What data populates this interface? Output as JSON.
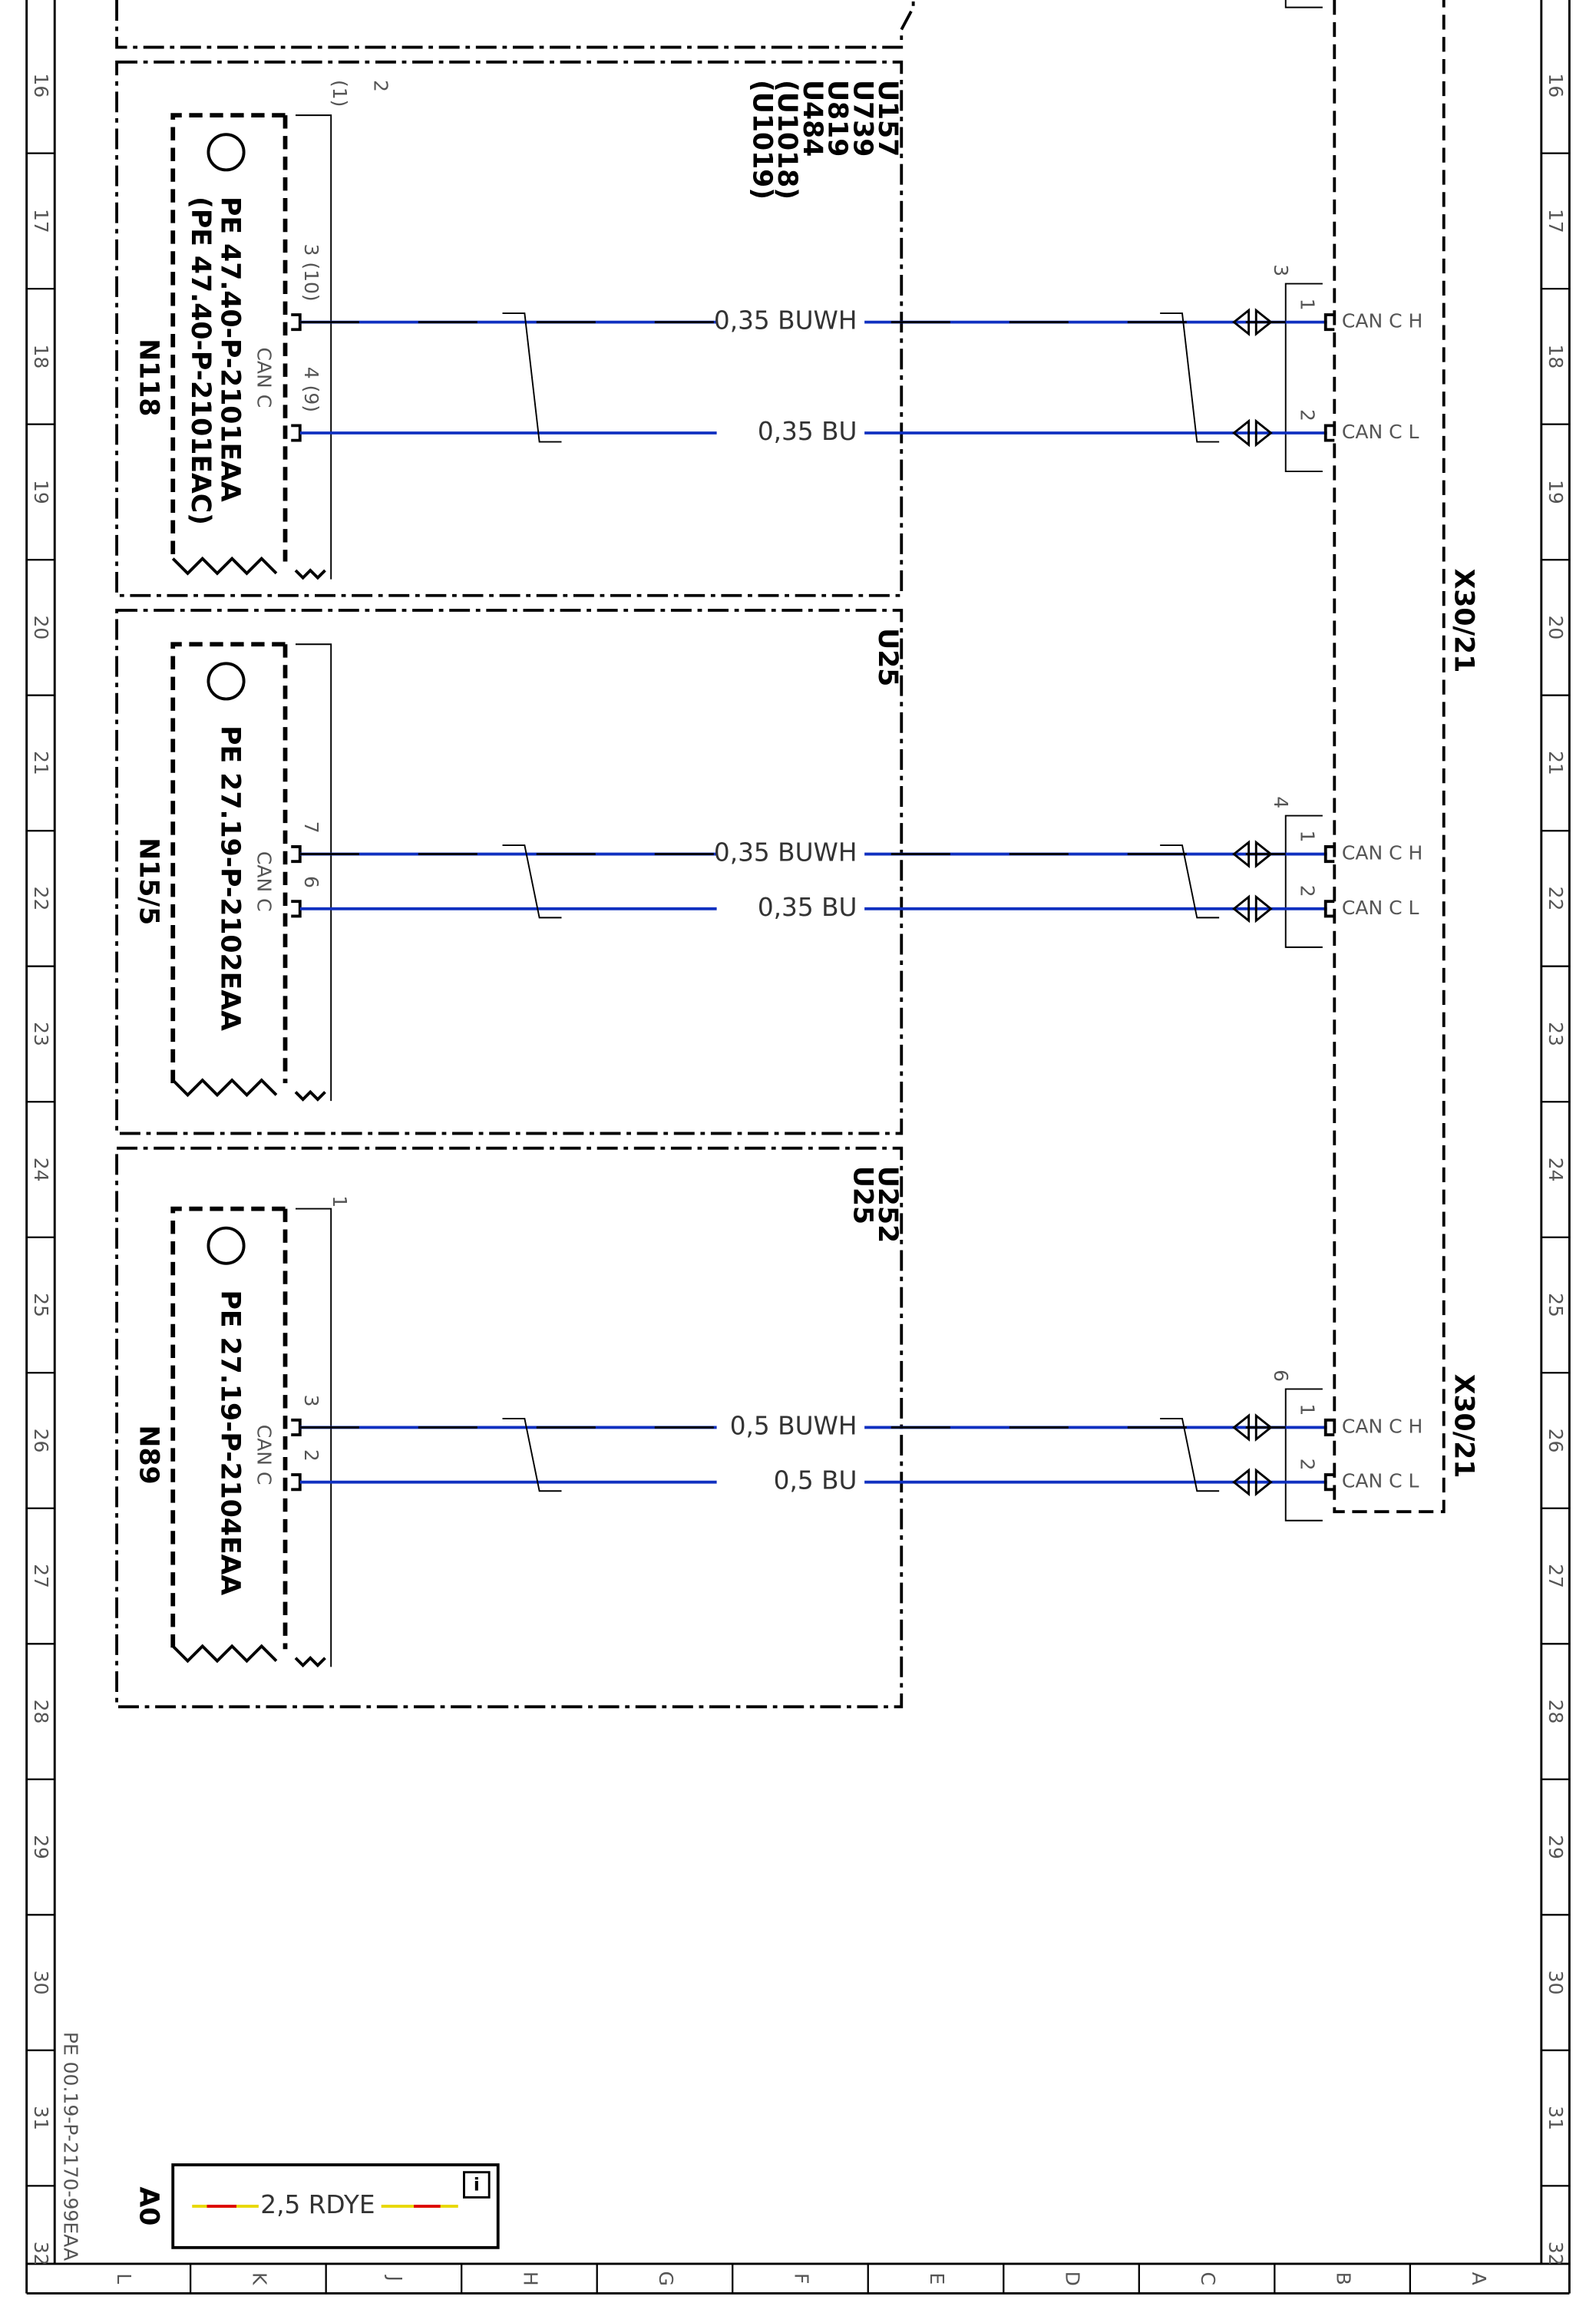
{
  "rows": [
    "16",
    "17",
    "18",
    "19",
    "20",
    "21",
    "22",
    "23",
    "24",
    "25",
    "26",
    "27",
    "28",
    "29",
    "30",
    "31",
    "32"
  ],
  "columns": [
    "L",
    "K",
    "J",
    "H",
    "G",
    "F",
    "E",
    "D",
    "C",
    "B",
    "A"
  ],
  "doc_id": "PE 00.19-P-2170-99EAA",
  "sheet": "A0",
  "legend": {
    "label": "2,5 RDYE"
  },
  "connector": {
    "label": "X30/21",
    "pin_high": "1",
    "pin_low": "2",
    "signal_high": "CAN C H",
    "signal_low": "CAN C L"
  },
  "blocks": [
    {
      "code": "N118",
      "refs": [
        "PE 47.40-P-2101EAA",
        "(PE 47.40-P-2101EAC)"
      ],
      "bus": "CAN C",
      "variants": [
        "U157",
        "U739",
        "U819",
        "U484",
        "(U1018)",
        "(U1019)"
      ],
      "top_labels": [
        "(1)",
        "2"
      ],
      "pins": [
        "3 (10)",
        "4 (9)"
      ],
      "wires": [
        "0,35 BUWH",
        "0,35 BU"
      ],
      "connector_no": "3"
    },
    {
      "code": "N15/5",
      "refs": [
        "PE 27.19-P-2102EAA"
      ],
      "bus": "CAN C",
      "variants": [
        "U25"
      ],
      "top_labels": [],
      "pins": [
        "7",
        "6"
      ],
      "wires": [
        "0,35 BUWH",
        "0,35 BU"
      ],
      "connector_no": "4"
    },
    {
      "code": "N89",
      "refs": [
        "PE 27.19-P-2104EAA"
      ],
      "bus": "CAN C",
      "variants": [
        "U252",
        "U25"
      ],
      "top_labels": [
        "1"
      ],
      "pins": [
        "3",
        "2"
      ],
      "wires": [
        "0,5 BUWH",
        "0,5 BU"
      ],
      "connector_no": "6"
    }
  ]
}
